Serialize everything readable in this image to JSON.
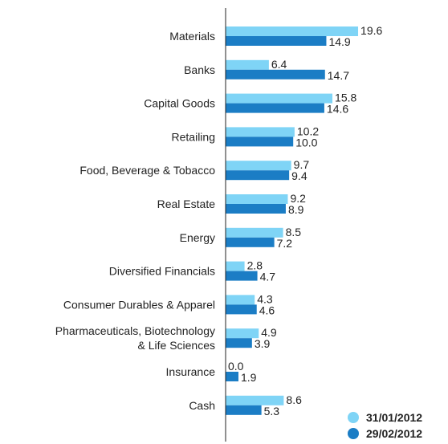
{
  "chart_data": {
    "type": "bar",
    "orientation": "horizontal",
    "categories": [
      "Materials",
      "Banks",
      "Capital Goods",
      "Retailing",
      "Food, Beverage & Tobacco",
      "Real Estate",
      "Energy",
      "Diversified Financials",
      "Consumer Durables & Apparel",
      "Pharmaceuticals, Biotechnology\n& Life Sciences",
      "Insurance",
      "Cash"
    ],
    "series": [
      {
        "name": "31/01/2012",
        "color": "#7fd4f6",
        "values": [
          19.6,
          6.4,
          15.8,
          10.2,
          9.7,
          9.2,
          8.5,
          2.8,
          4.3,
          4.9,
          0.0,
          8.6
        ],
        "value_labels": [
          "19.6",
          "6.4",
          "15.8",
          "10.2",
          "9.7",
          "9.2",
          "8.5",
          "2.8",
          "4.3",
          "4.9",
          "0.0",
          "8.6"
        ]
      },
      {
        "name": "29/02/2012",
        "color": "#1b7dc5",
        "values": [
          14.9,
          14.7,
          14.6,
          10.0,
          9.4,
          8.9,
          7.2,
          4.7,
          4.6,
          3.9,
          1.9,
          5.3
        ],
        "value_labels": [
          "14.9",
          "14.7",
          "14.6",
          "10.0",
          "9.4",
          "8.9",
          "7.2",
          "4.7",
          "4.6",
          "3.9",
          "1.9",
          "5.3"
        ]
      }
    ],
    "xlim": [
      0,
      20
    ],
    "legend": "bottom-right"
  }
}
